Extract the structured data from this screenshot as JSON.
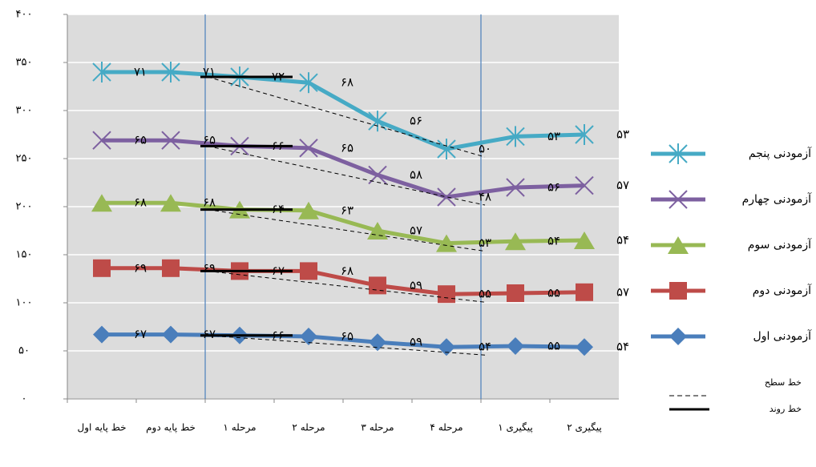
{
  "chart_data": {
    "type": "line",
    "stacked": true,
    "categories": [
      "خط پایه اول",
      "خط پایه دوم",
      "مرحله ۱",
      "مرحله ۲",
      "مرحله ۳",
      "مرحله ۴",
      "پیگیری ۱",
      "پیگیری ۲"
    ],
    "series": [
      {
        "name": "آزمودنی اول",
        "color": "#4a7ebb",
        "marker": "diamond",
        "values": [
          67,
          67,
          66,
          65,
          59,
          54,
          55,
          54
        ],
        "value_labels": [
          "۶۷",
          "۶۷",
          "۶۶",
          "۶۵",
          "۵۹",
          "۵۴",
          "۵۵",
          "۵۴"
        ]
      },
      {
        "name": "آزمودنی دوم",
        "color": "#be4b48",
        "marker": "square",
        "values": [
          69,
          69,
          67,
          68,
          59,
          55,
          55,
          57
        ],
        "value_labels": [
          "۶۹",
          "۶۹",
          "۶۷",
          "۶۸",
          "۵۹",
          "۵۵",
          "۵۵",
          "۵۷"
        ]
      },
      {
        "name": "آزمودنی سوم",
        "color": "#98b954",
        "marker": "triangle",
        "values": [
          68,
          68,
          64,
          63,
          57,
          53,
          54,
          54
        ],
        "value_labels": [
          "۶۸",
          "۶۸",
          "۶۴",
          "۶۳",
          "۵۷",
          "۵۳",
          "۵۴",
          "۵۴"
        ]
      },
      {
        "name": "آزمودنی چهارم",
        "color": "#7d60a0",
        "marker": "x",
        "values": [
          65,
          65,
          66,
          65,
          58,
          48,
          56,
          57
        ],
        "value_labels": [
          "۶۵",
          "۶۵",
          "۶۶",
          "۶۵",
          "۵۸",
          "۴۸",
          "۵۶",
          "۵۷"
        ]
      },
      {
        "name": "آزمودنی پنجم",
        "color": "#46aac5",
        "marker": "star",
        "values": [
          71,
          71,
          72,
          68,
          56,
          50,
          53,
          53
        ],
        "value_labels": [
          "۷۱",
          "۷۱",
          "۷۲",
          "۶۸",
          "۵۶",
          "۵۰",
          "۵۳",
          "۵۳"
        ]
      }
    ],
    "ylim": [
      0,
      400
    ],
    "yticks": [
      {
        "value": 0,
        "label": "۰"
      },
      {
        "value": 50,
        "label": "۵۰"
      },
      {
        "value": 100,
        "label": "۱۰۰"
      },
      {
        "value": 150,
        "label": "۱۵۰"
      },
      {
        "value": 200,
        "label": "۲۰۰"
      },
      {
        "value": 250,
        "label": "۲۵۰"
      },
      {
        "value": 300,
        "label": "۳۰۰"
      },
      {
        "value": 350,
        "label": "۳۵۰"
      },
      {
        "value": 400,
        "label": "۴۰۰"
      }
    ],
    "grid": true,
    "legend": "right",
    "line_notes": [
      "خط سطح",
      "خط روند"
    ]
  }
}
